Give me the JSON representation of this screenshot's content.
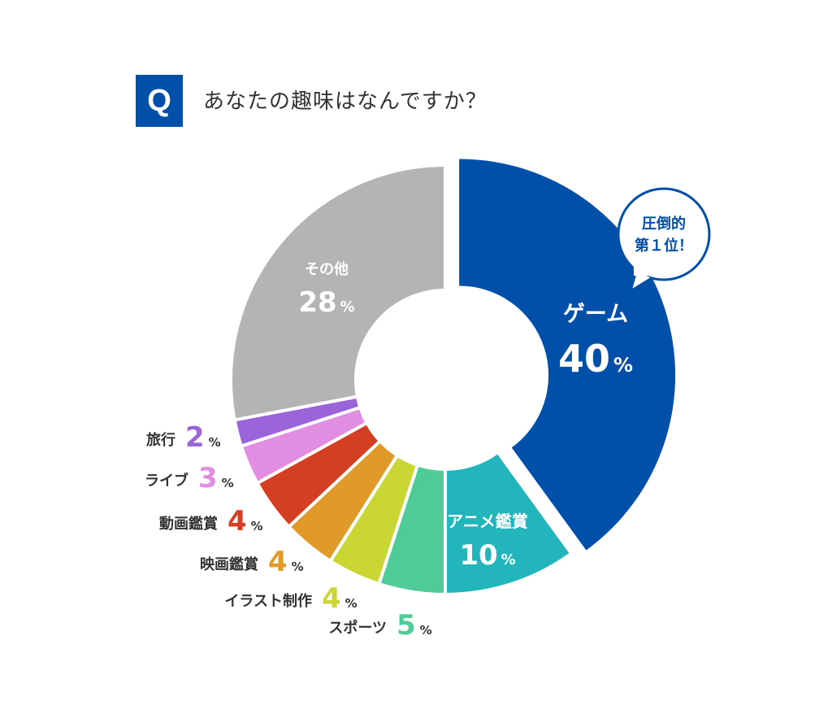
{
  "question": {
    "badge": "Q",
    "text": "あなたの趣味はなんですか？"
  },
  "callout": {
    "line1": "圧倒的",
    "line2": "第１位！"
  },
  "chart_data": {
    "type": "pie",
    "donut": true,
    "unit": "%",
    "title": "あなたの趣味はなんですか？",
    "slices": [
      {
        "label": "ゲーム",
        "value": 40,
        "color": "#0050a9"
      },
      {
        "label": "アニメ鑑賞",
        "value": 10,
        "color": "#22b5bc"
      },
      {
        "label": "スポーツ",
        "value": 5,
        "color": "#4fcb97"
      },
      {
        "label": "イラスト制作",
        "value": 4,
        "color": "#c9d634"
      },
      {
        "label": "映画鑑賞",
        "value": 4,
        "color": "#e09a29"
      },
      {
        "label": "動画鑑賞",
        "value": 4,
        "color": "#d43e23"
      },
      {
        "label": "ライブ",
        "value": 3,
        "color": "#e08de2"
      },
      {
        "label": "旅行",
        "value": 2,
        "color": "#9b64d8"
      },
      {
        "label": "その他",
        "value": 28,
        "color": "#b4b4b4"
      }
    ]
  }
}
